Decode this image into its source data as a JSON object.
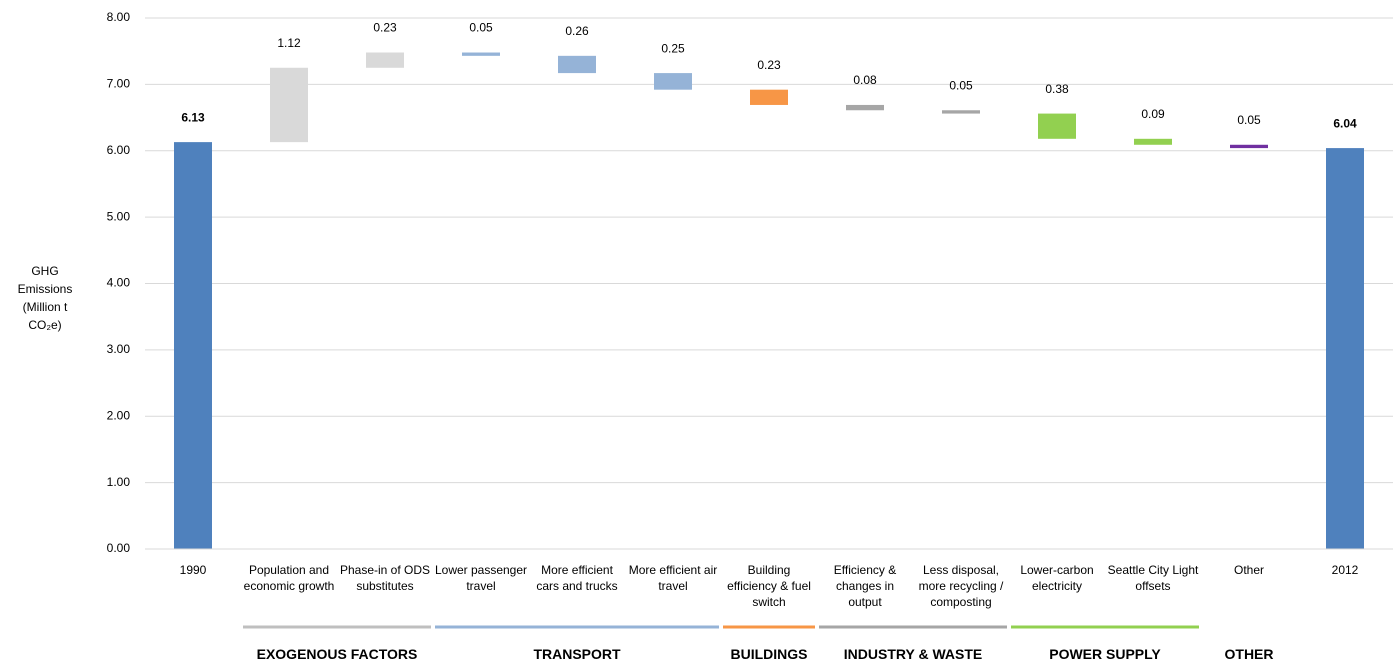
{
  "chart_data": {
    "type": "waterfall",
    "y_label": "GHG Emissions (Million t CO₂e)",
    "categories": [
      "1990",
      "Population and economic growth",
      "Phase-in of ODS substitutes",
      "Lower passenger travel",
      "More efficient cars and trucks",
      "More efficient air travel",
      "Building efficiency & fuel switch",
      "Efficiency & changes in output",
      "Less disposal, more recycling / composting",
      "Lower-carbon electricity",
      "Seattle City Light offsets",
      "Other",
      "2012"
    ],
    "values": [
      6.13,
      1.12,
      0.23,
      -0.05,
      -0.26,
      -0.25,
      -0.23,
      -0.08,
      -0.05,
      -0.38,
      -0.09,
      -0.05,
      6.04
    ],
    "value_labels": [
      "6.13",
      "1.12",
      "0.23",
      "0.05",
      "0.26",
      "0.25",
      "0.23",
      "0.08",
      "0.05",
      "0.38",
      "0.09",
      "0.05",
      "6.04"
    ],
    "colors": [
      "#4f81bd",
      "#d9d9d9",
      "#d9d9d9",
      "#95b3d7",
      "#95b3d7",
      "#95b3d7",
      "#f79646",
      "#a6a6a6",
      "#a6a6a6",
      "#92d050",
      "#92d050",
      "#7030a0",
      "#4f81bd"
    ],
    "groups": [
      {
        "name": "EXOGENOUS FACTORS",
        "color": "#bfbfbf",
        "span": [
          1,
          2
        ]
      },
      {
        "name": "TRANSPORT",
        "color": "#95b3d7",
        "span": [
          3,
          5
        ]
      },
      {
        "name": "BUILDINGS",
        "color": "#f79646",
        "span": [
          6,
          6
        ]
      },
      {
        "name": "INDUSTRY & WASTE",
        "color": "#a6a6a6",
        "span": [
          7,
          8
        ]
      },
      {
        "name": "POWER SUPPLY",
        "color": "#92d050",
        "span": [
          9,
          10
        ]
      },
      {
        "name": "OTHER",
        "color": null,
        "span": [
          11,
          11
        ]
      }
    ],
    "ylim": [
      0,
      8
    ],
    "yticks": [
      {
        "value": 0,
        "label": "0.00"
      },
      {
        "value": 1,
        "label": "1.00"
      },
      {
        "value": 2,
        "label": "2.00"
      },
      {
        "value": 3,
        "label": "3.00"
      },
      {
        "value": 4,
        "label": "4.00"
      },
      {
        "value": 5,
        "label": "5.00"
      },
      {
        "value": 6,
        "label": "6.00"
      },
      {
        "value": 7,
        "label": "7.00"
      },
      {
        "value": 8,
        "label": "8.00"
      }
    ],
    "grid": true
  }
}
